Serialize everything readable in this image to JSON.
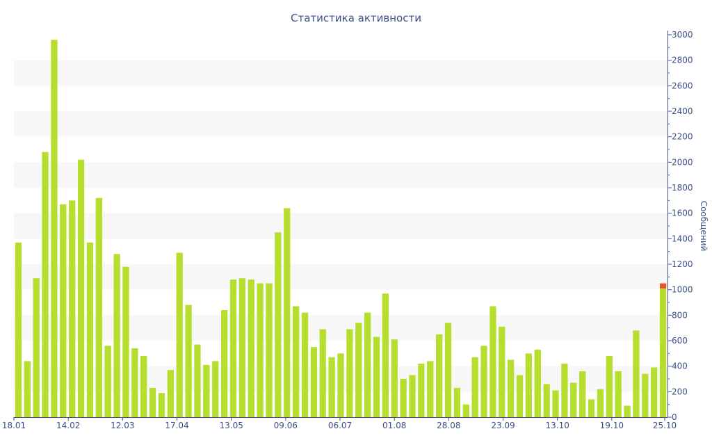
{
  "chart_data": {
    "type": "bar",
    "title": "Статистика активности",
    "xlabel": "",
    "ylabel": "Сообщений",
    "ylim": [
      0,
      3000
    ],
    "y_ticks": [
      0,
      200,
      400,
      600,
      800,
      1000,
      1200,
      1400,
      1600,
      1800,
      2000,
      2200,
      2400,
      2600,
      2800,
      3000
    ],
    "x_tick_labels": [
      "18.01",
      "14.02",
      "12.03",
      "17.04",
      "13.05",
      "09.06",
      "06.07",
      "01.08",
      "28.08",
      "23.09",
      "13.10",
      "19.10",
      "25.10"
    ],
    "y_axis_position": "right",
    "grid": "alternating horizontal bands",
    "colors": {
      "bar": "#b5de2f",
      "highlight": "#e8542c",
      "band": "#f7f7f7",
      "text": "#3d4f8a",
      "axis": "#3d4f8a"
    },
    "series": [
      {
        "values": [
          1370,
          440,
          1090,
          2080,
          2960,
          1670,
          1700,
          2020,
          1370,
          1720,
          560,
          1280,
          1180,
          540,
          480,
          230,
          190,
          370,
          1290,
          880,
          570,
          410,
          440,
          840,
          1080,
          1090,
          1080,
          1050,
          1050,
          1450,
          1640,
          870,
          820,
          550,
          690,
          470,
          500,
          690,
          740,
          820,
          630,
          970,
          610,
          300,
          330,
          420,
          440,
          650,
          740,
          230,
          100,
          470,
          560,
          870,
          710,
          450,
          330,
          500,
          530,
          260,
          210,
          420,
          270,
          360,
          140,
          220,
          480,
          360,
          90,
          680,
          340,
          390,
          1010
        ]
      },
      {
        "name": "",
        "values": [
          0,
          0,
          0,
          0,
          0,
          0,
          0,
          0,
          0,
          0,
          0,
          0,
          0,
          0,
          0,
          0,
          0,
          0,
          0,
          0,
          0,
          0,
          0,
          0,
          0,
          0,
          0,
          0,
          0,
          0,
          0,
          0,
          0,
          0,
          0,
          0,
          0,
          0,
          0,
          0,
          0,
          0,
          0,
          0,
          0,
          0,
          0,
          0,
          0,
          0,
          0,
          0,
          0,
          0,
          0,
          0,
          0,
          0,
          0,
          0,
          0,
          0,
          0,
          0,
          0,
          0,
          0,
          0,
          0,
          0,
          0,
          0,
          40
        ]
      }
    ]
  }
}
